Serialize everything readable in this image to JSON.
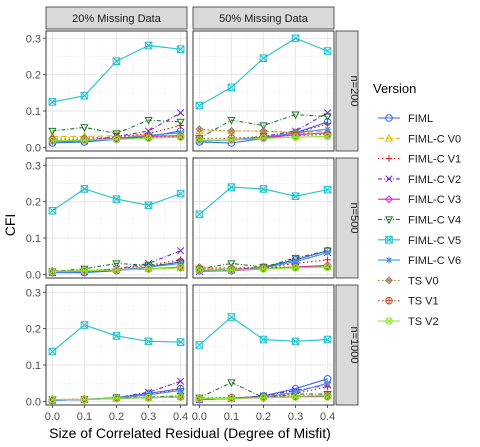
{
  "chart_data": {
    "type": "line",
    "xlabel": "Size of Correlated Residual (Degree of Misfit)",
    "ylabel": "CFI",
    "x": [
      0.0,
      0.1,
      0.2,
      0.3,
      0.4
    ],
    "xticks": [
      "0.0",
      "0.1",
      "0.2",
      "0.3",
      "0.4"
    ],
    "yticks": [
      "0.0",
      "0.1",
      "0.2",
      "0.3"
    ],
    "ylim": [
      -0.01,
      0.32
    ],
    "grid": true,
    "legend_title": "Version",
    "legend_position": "right",
    "columns": [
      "20% Missing Data",
      "50% Missing Data"
    ],
    "rows": [
      "n=200",
      "n=500",
      "n=1000"
    ],
    "series_styles": [
      {
        "name": "FIML",
        "color": "#3366ee",
        "marker": "circle",
        "dash": "solid"
      },
      {
        "name": "FIML-C V0",
        "color": "#e6b800",
        "marker": "triangle-up",
        "dash": "longdash"
      },
      {
        "name": "FIML-C V1",
        "color": "#d11a1a",
        "marker": "plus",
        "dash": "dotted"
      },
      {
        "name": "FIML-C V2",
        "color": "#7a1fd1",
        "marker": "cross",
        "dash": "dashdot"
      },
      {
        "name": "FIML-C V3",
        "color": "#e01ee0",
        "marker": "diamond",
        "dash": "solid"
      },
      {
        "name": "FIML-C V4",
        "color": "#1f7a2e",
        "marker": "triangle-down",
        "dash": "dashdot"
      },
      {
        "name": "FIML-C V5",
        "color": "#1fc2cc",
        "marker": "square-x",
        "dash": "solid"
      },
      {
        "name": "FIML-C V6",
        "color": "#4a90e2",
        "marker": "asterisk",
        "dash": "solid"
      },
      {
        "name": "TS V0",
        "color": "#a0825a",
        "marker": "diamond-x",
        "dash": "dotted"
      },
      {
        "name": "TS V1",
        "color": "#b5502d",
        "marker": "circle-plus",
        "dash": "dotted"
      },
      {
        "name": "TS V2",
        "color": "#8ce62e",
        "marker": "circle-x",
        "dash": "solid"
      }
    ],
    "panels": [
      {
        "column": "20% Missing Data",
        "row": "n=200",
        "series": [
          {
            "name": "FIML",
            "values": [
              0.012,
              0.015,
              0.022,
              0.03,
              0.045
            ]
          },
          {
            "name": "FIML-C V0",
            "values": [
              0.03,
              0.03,
              0.032,
              0.035,
              0.03
            ]
          },
          {
            "name": "FIML-C V1",
            "values": [
              0.018,
              0.02,
              0.028,
              0.038,
              0.06
            ]
          },
          {
            "name": "FIML-C V2",
            "values": [
              0.015,
              0.018,
              0.03,
              0.045,
              0.095
            ]
          },
          {
            "name": "FIML-C V3",
            "values": [
              0.018,
              0.02,
              0.025,
              0.03,
              0.032
            ]
          },
          {
            "name": "FIML-C V4",
            "values": [
              0.045,
              0.055,
              0.038,
              0.075,
              0.07
            ]
          },
          {
            "name": "FIML-C V5",
            "values": [
              0.125,
              0.142,
              0.237,
              0.28,
              0.27
            ]
          },
          {
            "name": "FIML-C V6",
            "values": [
              0.015,
              0.018,
              0.025,
              0.033,
              0.04
            ]
          },
          {
            "name": "TS V0",
            "values": [
              0.025,
              0.026,
              0.028,
              0.03,
              0.03
            ]
          },
          {
            "name": "TS V1",
            "values": [
              0.02,
              0.022,
              0.025,
              0.028,
              0.03
            ]
          },
          {
            "name": "TS V2",
            "values": [
              0.018,
              0.02,
              0.022,
              0.025,
              0.028
            ]
          }
        ]
      },
      {
        "column": "50% Missing Data",
        "row": "n=200",
        "series": [
          {
            "name": "FIML",
            "values": [
              0.015,
              0.012,
              0.025,
              0.04,
              0.07
            ]
          },
          {
            "name": "FIML-C V0",
            "values": [
              0.045,
              0.045,
              0.045,
              0.04,
              0.045
            ]
          },
          {
            "name": "FIML-C V1",
            "values": [
              0.02,
              0.02,
              0.03,
              0.038,
              0.065
            ]
          },
          {
            "name": "FIML-C V2",
            "values": [
              0.018,
              0.02,
              0.03,
              0.045,
              0.095
            ]
          },
          {
            "name": "FIML-C V3",
            "values": [
              0.02,
              0.02,
              0.025,
              0.035,
              0.04
            ]
          },
          {
            "name": "FIML-C V4",
            "values": [
              0.025,
              0.075,
              0.06,
              0.09,
              0.085
            ]
          },
          {
            "name": "FIML-C V5",
            "values": [
              0.115,
              0.165,
              0.245,
              0.3,
              0.265
            ]
          },
          {
            "name": "FIML-C V6",
            "values": [
              0.018,
              0.02,
              0.028,
              0.04,
              0.05
            ]
          },
          {
            "name": "TS V0",
            "values": [
              0.05,
              0.045,
              0.045,
              0.04,
              0.035
            ]
          },
          {
            "name": "TS V1",
            "values": [
              0.025,
              0.025,
              0.03,
              0.032,
              0.035
            ]
          },
          {
            "name": "TS V2",
            "values": [
              0.02,
              0.02,
              0.025,
              0.028,
              0.03
            ]
          }
        ]
      },
      {
        "column": "20% Missing Data",
        "row": "n=500",
        "series": [
          {
            "name": "FIML",
            "values": [
              0.005,
              0.005,
              0.01,
              0.02,
              0.035
            ]
          },
          {
            "name": "FIML-C V0",
            "values": [
              0.008,
              0.01,
              0.012,
              0.015,
              0.018
            ]
          },
          {
            "name": "FIML-C V1",
            "values": [
              0.008,
              0.01,
              0.015,
              0.025,
              0.04
            ]
          },
          {
            "name": "FIML-C V2",
            "values": [
              0.005,
              0.008,
              0.015,
              0.03,
              0.065
            ]
          },
          {
            "name": "FIML-C V3",
            "values": [
              0.008,
              0.008,
              0.012,
              0.015,
              0.02
            ]
          },
          {
            "name": "FIML-C V4",
            "values": [
              0.008,
              0.015,
              0.03,
              0.025,
              0.03
            ]
          },
          {
            "name": "FIML-C V5",
            "values": [
              0.175,
              0.235,
              0.207,
              0.19,
              0.222
            ]
          },
          {
            "name": "FIML-C V6",
            "values": [
              0.005,
              0.008,
              0.012,
              0.02,
              0.03
            ]
          },
          {
            "name": "TS V0",
            "values": [
              0.01,
              0.01,
              0.012,
              0.015,
              0.018
            ]
          },
          {
            "name": "TS V1",
            "values": [
              0.008,
              0.01,
              0.012,
              0.015,
              0.02
            ]
          },
          {
            "name": "TS V2",
            "values": [
              0.008,
              0.01,
              0.012,
              0.015,
              0.018
            ]
          }
        ]
      },
      {
        "column": "50% Missing Data",
        "row": "n=500",
        "series": [
          {
            "name": "FIML",
            "values": [
              0.01,
              0.01,
              0.02,
              0.04,
              0.065
            ]
          },
          {
            "name": "FIML-C V0",
            "values": [
              0.015,
              0.015,
              0.018,
              0.02,
              0.02
            ]
          },
          {
            "name": "FIML-C V1",
            "values": [
              0.01,
              0.012,
              0.018,
              0.03,
              0.04
            ]
          },
          {
            "name": "FIML-C V2",
            "values": [
              0.008,
              0.012,
              0.02,
              0.035,
              0.06
            ]
          },
          {
            "name": "FIML-C V3",
            "values": [
              0.01,
              0.01,
              0.015,
              0.02,
              0.025
            ]
          },
          {
            "name": "FIML-C V4",
            "values": [
              0.015,
              0.03,
              0.02,
              0.045,
              0.065
            ]
          },
          {
            "name": "FIML-C V5",
            "values": [
              0.165,
              0.24,
              0.235,
              0.215,
              0.233
            ]
          },
          {
            "name": "FIML-C V6",
            "values": [
              0.008,
              0.01,
              0.018,
              0.035,
              0.06
            ]
          },
          {
            "name": "TS V0",
            "values": [
              0.02,
              0.018,
              0.02,
              0.02,
              0.022
            ]
          },
          {
            "name": "TS V1",
            "values": [
              0.015,
              0.015,
              0.018,
              0.02,
              0.022
            ]
          },
          {
            "name": "TS V2",
            "values": [
              0.012,
              0.012,
              0.015,
              0.018,
              0.02
            ]
          }
        ]
      },
      {
        "column": "20% Missing Data",
        "row": "n=1000",
        "series": [
          {
            "name": "FIML",
            "values": [
              0.003,
              0.005,
              0.01,
              0.022,
              0.035
            ]
          },
          {
            "name": "FIML-C V0",
            "values": [
              0.005,
              0.006,
              0.008,
              0.01,
              0.012
            ]
          },
          {
            "name": "FIML-C V1",
            "values": [
              0.004,
              0.005,
              0.01,
              0.018,
              0.035
            ]
          },
          {
            "name": "FIML-C V2",
            "values": [
              0.003,
              0.005,
              0.01,
              0.025,
              0.055
            ]
          },
          {
            "name": "FIML-C V3",
            "values": [
              0.004,
              0.005,
              0.008,
              0.01,
              0.012
            ]
          },
          {
            "name": "FIML-C V4",
            "values": [
              0.005,
              0.005,
              0.01,
              0.012,
              0.015
            ]
          },
          {
            "name": "FIML-C V5",
            "values": [
              0.137,
              0.21,
              0.18,
              0.165,
              0.163
            ]
          },
          {
            "name": "FIML-C V6",
            "values": [
              0.003,
              0.005,
              0.01,
              0.018,
              0.03
            ]
          },
          {
            "name": "TS V0",
            "values": [
              0.005,
              0.006,
              0.008,
              0.01,
              0.012
            ]
          },
          {
            "name": "TS V1",
            "values": [
              0.005,
              0.006,
              0.008,
              0.01,
              0.012
            ]
          },
          {
            "name": "TS V2",
            "values": [
              0.005,
              0.005,
              0.008,
              0.01,
              0.012
            ]
          }
        ]
      },
      {
        "column": "50% Missing Data",
        "row": "n=1000",
        "series": [
          {
            "name": "FIML",
            "values": [
              0.005,
              0.008,
              0.015,
              0.035,
              0.062
            ]
          },
          {
            "name": "FIML-C V0",
            "values": [
              0.008,
              0.01,
              0.012,
              0.015,
              0.015
            ]
          },
          {
            "name": "FIML-C V1",
            "values": [
              0.005,
              0.008,
              0.012,
              0.022,
              0.04
            ]
          },
          {
            "name": "FIML-C V2",
            "values": [
              0.005,
              0.008,
              0.015,
              0.03,
              0.045
            ]
          },
          {
            "name": "FIML-C V3",
            "values": [
              0.005,
              0.008,
              0.01,
              0.012,
              0.015
            ]
          },
          {
            "name": "FIML-C V4",
            "values": [
              0.01,
              0.052,
              0.01,
              0.02,
              0.02
            ]
          },
          {
            "name": "FIML-C V5",
            "values": [
              0.155,
              0.232,
              0.17,
              0.165,
              0.17
            ]
          },
          {
            "name": "FIML-C V6",
            "values": [
              0.005,
              0.008,
              0.012,
              0.025,
              0.05
            ]
          },
          {
            "name": "TS V0",
            "values": [
              0.01,
              0.01,
              0.012,
              0.015,
              0.015
            ]
          },
          {
            "name": "TS V1",
            "values": [
              0.008,
              0.01,
              0.012,
              0.012,
              0.015
            ]
          },
          {
            "name": "TS V2",
            "values": [
              0.008,
              0.008,
              0.01,
              0.012,
              0.012
            ]
          }
        ]
      }
    ]
  }
}
